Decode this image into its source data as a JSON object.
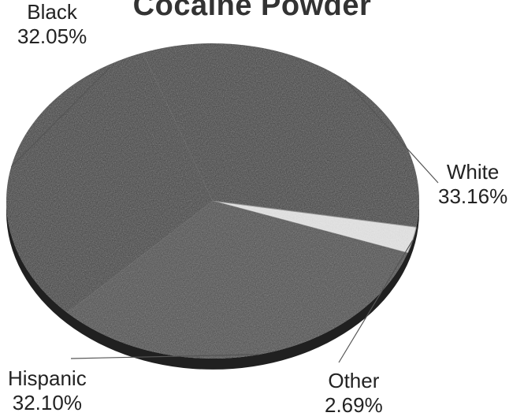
{
  "colors": {
    "slice_dark": "#3a3a3a",
    "slice_mid": "#4a4a4a",
    "slice_other": "#e6e6e6",
    "rim": "#202020",
    "leader": "#555555"
  },
  "chart_data": {
    "type": "pie",
    "title": "Cocaine Powder",
    "slices": [
      {
        "label": "White",
        "value": 33.16,
        "display": "33.16%"
      },
      {
        "label": "Other",
        "value": 2.69,
        "display": "2.69%"
      },
      {
        "label": "Hispanic",
        "value": 32.1,
        "display": "32.10%"
      },
      {
        "label": "Black",
        "value": 32.05,
        "display": "32.05%"
      }
    ],
    "legend": "none"
  }
}
